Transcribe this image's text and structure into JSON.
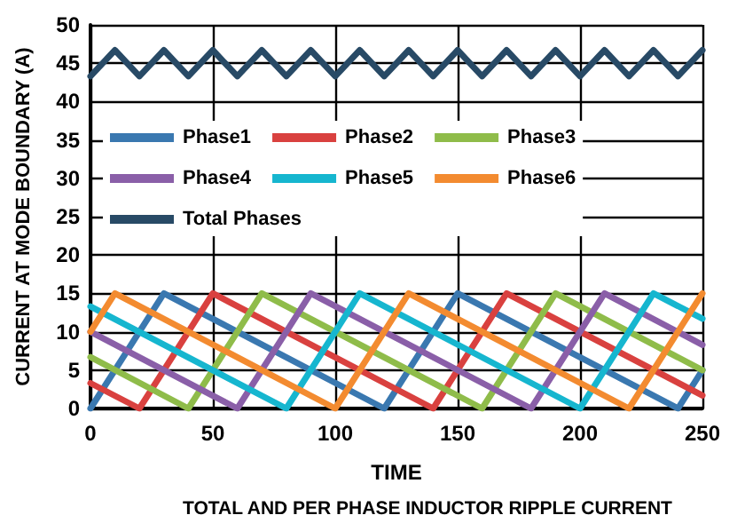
{
  "chart_data": {
    "type": "line",
    "title": "TOTAL AND PER PHASE INDUCTOR RIPPLE CURRENT",
    "xlabel": "TIME",
    "ylabel": "CURRENT AT MODE BOUNDARY (A)",
    "series": [
      {
        "name": "Phase1",
        "color": "#3a78b0",
        "x": [
          0,
          30,
          120,
          150,
          240,
          250
        ],
        "values": [
          0,
          15,
          0,
          15,
          0,
          5
        ]
      },
      {
        "name": "Phase2",
        "color": "#d9413f",
        "x": [
          0,
          20,
          50,
          140,
          170,
          250
        ],
        "values": [
          3.3,
          0,
          15,
          0,
          15,
          1.7
        ]
      },
      {
        "name": "Phase3",
        "color": "#8fbc4a",
        "x": [
          0,
          40,
          70,
          160,
          190,
          250
        ],
        "values": [
          6.7,
          0,
          15,
          0,
          15,
          5
        ]
      },
      {
        "name": "Phase4",
        "color": "#8a5fa8",
        "x": [
          0,
          60,
          90,
          180,
          210,
          250
        ],
        "values": [
          10,
          0,
          15,
          0,
          15,
          8.3
        ]
      },
      {
        "name": "Phase5",
        "color": "#16b6cf",
        "x": [
          0,
          80,
          110,
          200,
          230,
          250
        ],
        "values": [
          13.3,
          0,
          15,
          0,
          15,
          11.7
        ]
      },
      {
        "name": "Phase6",
        "color": "#f38b30",
        "x": [
          0,
          10,
          100,
          130,
          220,
          250
        ],
        "values": [
          10,
          15,
          0,
          15,
          0,
          15
        ]
      },
      {
        "name": "Total Phases",
        "color": "#284a66",
        "x": [
          0,
          10,
          20,
          30,
          40,
          50,
          60,
          70,
          80,
          90,
          100,
          110,
          120,
          130,
          140,
          150,
          160,
          170,
          180,
          190,
          200,
          210,
          220,
          230,
          240,
          250
        ],
        "values": [
          43.3,
          46.7,
          43.3,
          46.7,
          43.3,
          46.7,
          43.3,
          46.7,
          43.3,
          46.7,
          43.3,
          46.7,
          43.3,
          46.7,
          43.3,
          46.7,
          43.3,
          46.7,
          43.3,
          46.7,
          43.3,
          46.7,
          43.3,
          46.7,
          43.3,
          46.7
        ]
      }
    ],
    "xlim": [
      0,
      250
    ],
    "xticks": [
      0,
      50,
      100,
      150,
      200,
      250
    ],
    "ylim": [
      0,
      50
    ],
    "yticks": [
      0,
      5,
      10,
      15,
      20,
      25,
      30,
      35,
      40,
      45,
      50
    ],
    "grid": true,
    "legend": "center",
    "marker": "none",
    "line_style": "solid"
  }
}
